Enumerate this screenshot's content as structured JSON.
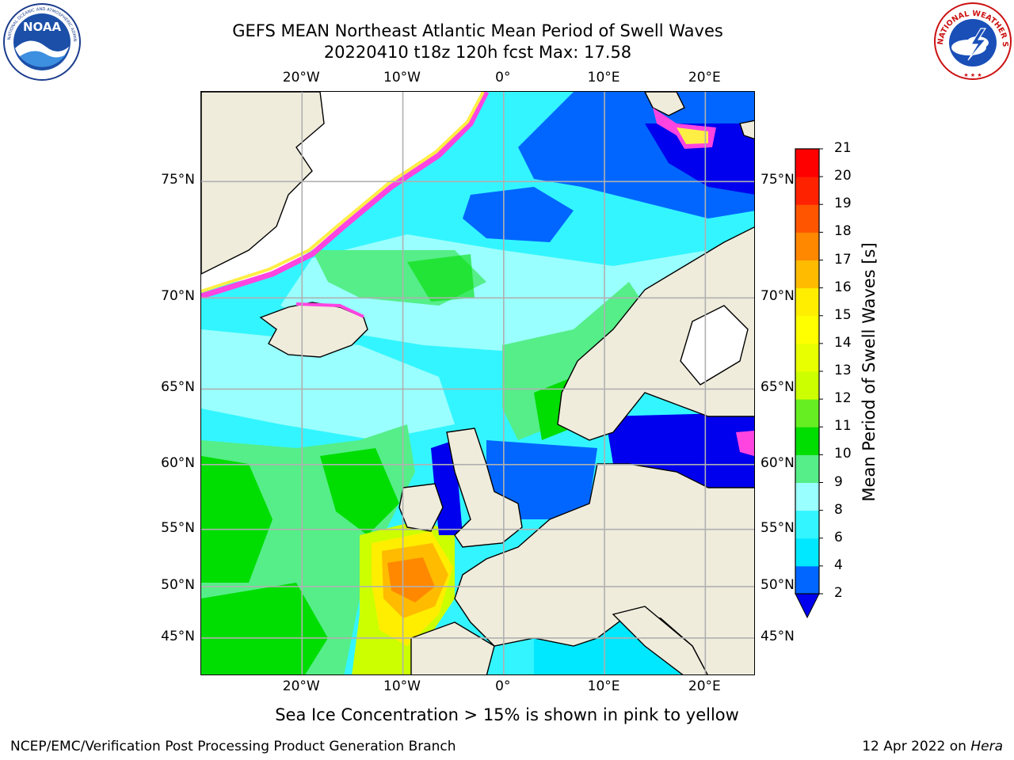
{
  "title": {
    "line1": "GEFS MEAN Northeast Atlantic Mean Period of Swell Waves",
    "line2": "20220410 t18z 120h fcst   Max: 17.58"
  },
  "map": {
    "lon_range": [
      -30,
      25
    ],
    "lat_range": [
      41,
      78
    ],
    "lon_ticks": [
      {
        "value": -20,
        "label": "20°W"
      },
      {
        "value": -10,
        "label": "10°W"
      },
      {
        "value": 0,
        "label": "0°"
      },
      {
        "value": 10,
        "label": "10°E"
      },
      {
        "value": 20,
        "label": "20°E"
      }
    ],
    "lat_ticks": [
      {
        "value": 75,
        "label": "75°N"
      },
      {
        "value": 70,
        "label": "70°N"
      },
      {
        "value": 65,
        "label": "65°N"
      },
      {
        "value": 60,
        "label": "60°N"
      },
      {
        "value": 55,
        "label": "55°N"
      },
      {
        "value": 50,
        "label": "50°N"
      },
      {
        "value": 45,
        "label": "45°N"
      }
    ],
    "colors": {
      "land": "#efecdc",
      "grid": "#b0b0b0",
      "coast": "#000000",
      "ice_pink": "#ff44e0",
      "ice_yellow": "#ffee44"
    }
  },
  "colorbar": {
    "label": "Mean Period of Swell Waves [s]",
    "levels": [
      2,
      4,
      6,
      8,
      9,
      10,
      11,
      12,
      13,
      14,
      15,
      16,
      17,
      18,
      19,
      20,
      21
    ],
    "colors": [
      "#0066ff",
      "#00e8ff",
      "#33f5ff",
      "#99ffff",
      "#55ee88",
      "#00dd00",
      "#66ee22",
      "#ccff00",
      "#e8ff00",
      "#ffff00",
      "#ffee00",
      "#ffbb00",
      "#ff8800",
      "#ff5500",
      "#ff2200",
      "#ff0000"
    ],
    "under_color": "#0000ee"
  },
  "footnote": "Sea Ice Concentration > 15% is shown in pink to yellow",
  "credits": {
    "left": "NCEP/EMC/Verification Post Processing Product Generation Branch",
    "right_date": "12 Apr 2022 on ",
    "right_machine": "Hera"
  },
  "logos": {
    "noaa": "NOAA",
    "nws": "NATIONAL WEATHER SERVICE"
  }
}
